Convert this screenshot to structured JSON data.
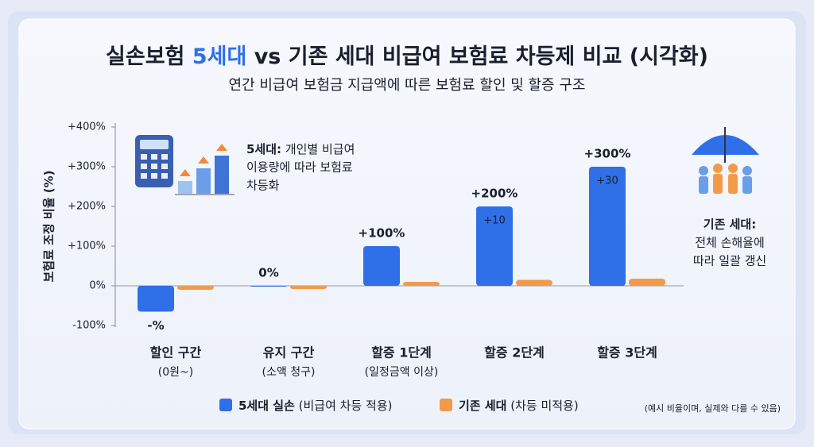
{
  "chart_data": {
    "type": "bar",
    "title": [
      "실손보험",
      "5세대",
      "vs 기존 세대 비급여 보험료 차등제 비교 (시각화)"
    ],
    "subtitle": "연간 비급여 보험금 지급액에 따른 보험료 할인 및 할증 구조",
    "ylabel": "보험료 조정 비율 (%)",
    "ylim": [
      -100,
      400
    ],
    "yticks": [
      {
        "value": -100,
        "label": "-100%"
      },
      {
        "value": 0,
        "label": "0%"
      },
      {
        "value": 100,
        "label": "+100%"
      },
      {
        "value": 200,
        "label": "+200%"
      },
      {
        "value": 300,
        "label": "+300%"
      },
      {
        "value": 400,
        "label": "+400%"
      }
    ],
    "categories": [
      "할인 구간",
      "유지 구간",
      "할증 1단계",
      "할증 2단계",
      "할증 3단계"
    ],
    "category_notes": [
      "(0원~)",
      "(소액 청구)",
      "(일정금액 이상)",
      null,
      null
    ],
    "series": [
      {
        "name": "5세대 실손",
        "note": "(비급여 차등 적용)",
        "color": "#2f6fe8",
        "values": [
          -65,
          0,
          100,
          200,
          300
        ],
        "value_labels": [
          "-%",
          "0%",
          "+100%",
          "+200%",
          "+300%"
        ],
        "inner_labels": [
          null,
          null,
          null,
          "+10",
          "+30"
        ]
      },
      {
        "name": "기존 세대",
        "note": "(차등 미적용)",
        "color": "#f39a4a",
        "values": [
          -10,
          -8,
          10,
          15,
          18
        ]
      }
    ],
    "left_annotation": {
      "heading": "5세대:",
      "lines": [
        "개인별 비급여",
        "이용량에 따라 보험료",
        "차등화"
      ]
    },
    "right_annotation": {
      "heading": "기존 세대:",
      "lines": [
        "전체 손해율에",
        "따라 일괄 갱신"
      ]
    },
    "footnote": "(예시 비율이며, 실제와 다를 수 있음)"
  }
}
